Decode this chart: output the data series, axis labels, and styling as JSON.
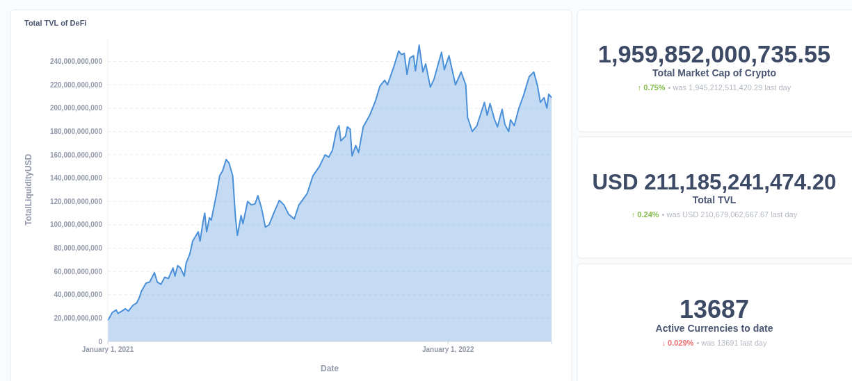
{
  "chart_data": [
    {
      "type": "area",
      "title": "Total TVL of DeFi",
      "xlabel": "Date",
      "ylabel": "TotalLiquidityUSD",
      "grid": "y",
      "marker": "none",
      "xlim": [
        "2021-01-01",
        "2022-04-22"
      ],
      "xticks": [
        {
          "value": "2021-01-01",
          "label": "January 1, 2021"
        },
        {
          "value": "2022-01-01",
          "label": "January 1, 2022"
        }
      ],
      "ylim": [
        0,
        260000000000
      ],
      "yticks": [
        0,
        {
          "value": 20000000000,
          "label": "20,000,000,000"
        },
        {
          "value": 40000000000,
          "label": "40,000,000,000"
        },
        {
          "value": 60000000000,
          "label": "60,000,000,000"
        },
        {
          "value": 80000000000,
          "label": "80,000,000,000"
        },
        {
          "value": 100000000000,
          "label": "100,000,000,000"
        },
        {
          "value": 120000000000,
          "label": "120,000,000,000"
        },
        {
          "value": 140000000000,
          "label": "140,000,000,000"
        },
        {
          "value": 160000000000,
          "label": "160,000,000,000"
        },
        {
          "value": 180000000000,
          "label": "180,000,000,000"
        },
        {
          "value": 200000000000,
          "label": "200,000,000,000"
        },
        {
          "value": 220000000000,
          "label": "220,000,000,000"
        },
        {
          "value": 240000000000,
          "label": "240,000,000,000"
        }
      ],
      "series": [
        {
          "color": "#4a90d9",
          "x": [
            "2021-01-01",
            "2021-01-06",
            "2021-01-10",
            "2021-01-12",
            "2021-01-20",
            "2021-01-23",
            "2021-01-28",
            "2021-02-01",
            "2021-02-04",
            "2021-02-06",
            "2021-02-11",
            "2021-02-15",
            "2021-02-20",
            "2021-02-23",
            "2021-02-27",
            "2021-03-03",
            "2021-03-07",
            "2021-03-12",
            "2021-03-14",
            "2021-03-17",
            "2021-03-20",
            "2021-03-24",
            "2021-03-26",
            "2021-03-30",
            "2021-04-02",
            "2021-04-05",
            "2021-04-08",
            "2021-04-10",
            "2021-04-13",
            "2021-04-15",
            "2021-04-17",
            "2021-04-20",
            "2021-04-22",
            "2021-04-24",
            "2021-04-28",
            "2021-05-01",
            "2021-05-04",
            "2021-05-08",
            "2021-05-11",
            "2021-05-15",
            "2021-05-18",
            "2021-05-20",
            "2021-05-24",
            "2021-05-26",
            "2021-05-31",
            "2021-06-04",
            "2021-06-08",
            "2021-06-11",
            "2021-06-15",
            "2021-06-19",
            "2021-06-23",
            "2021-06-28",
            "2021-07-04",
            "2021-07-09",
            "2021-07-14",
            "2021-07-20",
            "2021-07-25",
            "2021-08-03",
            "2021-08-09",
            "2021-08-16",
            "2021-08-22",
            "2021-08-26",
            "2021-08-30",
            "2021-09-03",
            "2021-09-06",
            "2021-09-08",
            "2021-09-13",
            "2021-09-15",
            "2021-09-18",
            "2021-09-20",
            "2021-09-24",
            "2021-09-27",
            "2021-10-02",
            "2021-10-09",
            "2021-10-15",
            "2021-10-20",
            "2021-10-25",
            "2021-10-28",
            "2021-11-04",
            "2021-11-09",
            "2021-11-12",
            "2021-11-15",
            "2021-11-18",
            "2021-11-21",
            "2021-11-25",
            "2021-11-27",
            "2021-12-01",
            "2021-12-05",
            "2021-12-08",
            "2021-12-13",
            "2021-12-17",
            "2021-12-25",
            "2021-12-28",
            "2022-01-02",
            "2022-01-09",
            "2022-01-15",
            "2022-01-20",
            "2022-01-22",
            "2022-01-27",
            "2022-02-01",
            "2022-02-09",
            "2022-02-12",
            "2022-02-15",
            "2022-02-20",
            "2022-02-23",
            "2022-02-28",
            "2022-03-03",
            "2022-03-07",
            "2022-03-09",
            "2022-03-13",
            "2022-03-18",
            "2022-03-23",
            "2022-03-29",
            "2022-04-03",
            "2022-04-07",
            "2022-04-10",
            "2022-04-14",
            "2022-04-17",
            "2022-04-19",
            "2022-04-22"
          ],
          "values": [
            18000000000,
            25000000000,
            27000000000,
            24000000000,
            28000000000,
            26000000000,
            31000000000,
            33000000000,
            38000000000,
            43000000000,
            50000000000,
            51000000000,
            59000000000,
            51000000000,
            49000000000,
            55000000000,
            54000000000,
            63000000000,
            56000000000,
            65000000000,
            63000000000,
            56000000000,
            67000000000,
            75000000000,
            86000000000,
            90000000000,
            94000000000,
            86000000000,
            102000000000,
            110000000000,
            94000000000,
            106000000000,
            104000000000,
            112000000000,
            128000000000,
            142000000000,
            146000000000,
            156000000000,
            153000000000,
            142000000000,
            106000000000,
            91000000000,
            108000000000,
            101000000000,
            120000000000,
            117000000000,
            118000000000,
            125000000000,
            114000000000,
            98000000000,
            100000000000,
            110000000000,
            121000000000,
            117000000000,
            109000000000,
            105000000000,
            117000000000,
            127000000000,
            142000000000,
            150000000000,
            160000000000,
            158000000000,
            164000000000,
            180000000000,
            185000000000,
            172000000000,
            176000000000,
            184000000000,
            182000000000,
            159000000000,
            168000000000,
            162000000000,
            184000000000,
            194000000000,
            206000000000,
            219000000000,
            224000000000,
            220000000000,
            236000000000,
            249000000000,
            246000000000,
            247000000000,
            229000000000,
            243000000000,
            245000000000,
            232000000000,
            254000000000,
            231000000000,
            238000000000,
            218000000000,
            225000000000,
            248000000000,
            233000000000,
            245000000000,
            220000000000,
            231000000000,
            220000000000,
            192000000000,
            180000000000,
            185000000000,
            205000000000,
            194000000000,
            204000000000,
            190000000000,
            184000000000,
            199000000000,
            186000000000,
            180000000000,
            190000000000,
            185000000000,
            200000000000,
            211000000000,
            227000000000,
            231000000000,
            219000000000,
            205000000000,
            209000000000,
            200000000000,
            212000000000,
            209000000000
          ]
        }
      ]
    },
    {
      "type": "other",
      "title": "Total Market Cap of Crypto",
      "color": "#84bb4c",
      "annotations": [
        "1,959,852,000,735.55",
        "↑ 0.75%",
        "• was 1,945,212,511,420.29  last day"
      ]
    },
    {
      "type": "other",
      "title": "Total TVL",
      "color": "#84bb4c",
      "annotations": [
        "USD 211,185,241,474.20",
        "↑ 0.24%",
        "• was USD 210,679,062,667.67  last day"
      ]
    },
    {
      "type": "other",
      "title": "Active Currencies to date",
      "color": "#ed6e6e",
      "annotations": [
        "13687",
        "↓ 0.029%",
        "• was 13691  last day"
      ]
    }
  ]
}
